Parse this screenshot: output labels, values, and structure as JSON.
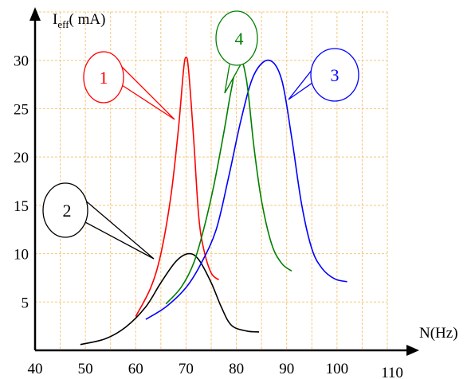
{
  "chart_data": {
    "type": "line",
    "ylabel": {
      "symbol": "I",
      "subscript": "eff",
      "unit": "( mA)"
    },
    "xlabel": "N(Hz)",
    "xlim": [
      40,
      110
    ],
    "ylim": [
      0,
      35
    ],
    "x_ticks": [
      "40",
      "50",
      "60",
      "70",
      "80",
      "90",
      "100",
      "110"
    ],
    "y_ticks": [
      "5",
      "10",
      "15",
      "20",
      "25",
      "30"
    ],
    "grid": true,
    "series": [
      {
        "name": "1",
        "color": "#ff0000",
        "points": [
          [
            60,
            3.5
          ],
          [
            63,
            6.5
          ],
          [
            65,
            10
          ],
          [
            67,
            16
          ],
          [
            68.5,
            23
          ],
          [
            69.5,
            29
          ],
          [
            70,
            30.3
          ],
          [
            70.5,
            29
          ],
          [
            71.5,
            22
          ],
          [
            72.5,
            14
          ],
          [
            73.5,
            10.5
          ],
          [
            75,
            8
          ],
          [
            76.5,
            7.3
          ]
        ]
      },
      {
        "name": "2",
        "color": "#000000",
        "points": [
          [
            49,
            0.6
          ],
          [
            54,
            1.2
          ],
          [
            58,
            2.4
          ],
          [
            62,
            4.5
          ],
          [
            65,
            7
          ],
          [
            68,
            9.2
          ],
          [
            70.5,
            10
          ],
          [
            72.5,
            9.4
          ],
          [
            75,
            7
          ],
          [
            77,
            4.5
          ],
          [
            79,
            2.6
          ],
          [
            82,
            2
          ],
          [
            84.5,
            1.9
          ]
        ]
      },
      {
        "name": "3",
        "color": "#0000ff",
        "points": [
          [
            62,
            3.2
          ],
          [
            66,
            4.5
          ],
          [
            70,
            6.5
          ],
          [
            73,
            9
          ],
          [
            76,
            12.5
          ],
          [
            78.5,
            18
          ],
          [
            81,
            24
          ],
          [
            83.5,
            28.5
          ],
          [
            86.5,
            30
          ],
          [
            89,
            28
          ],
          [
            91,
            22
          ],
          [
            93,
            15
          ],
          [
            95,
            10.5
          ],
          [
            97,
            8.5
          ],
          [
            99.5,
            7.4
          ],
          [
            102,
            7.1
          ]
        ]
      },
      {
        "name": "4",
        "color": "#008000",
        "points": [
          [
            66,
            4.8
          ],
          [
            69,
            6.5
          ],
          [
            71.5,
            9
          ],
          [
            73.5,
            12.5
          ],
          [
            75.5,
            17
          ],
          [
            77.5,
            22.5
          ],
          [
            79,
            27
          ],
          [
            80.5,
            30.3
          ],
          [
            82,
            28
          ],
          [
            83.5,
            21
          ],
          [
            85,
            15.5
          ],
          [
            87,
            11
          ],
          [
            89,
            9
          ],
          [
            91,
            8.2
          ]
        ]
      }
    ],
    "annotations": [
      {
        "text": "1",
        "color": "#ff0000",
        "series": "1"
      },
      {
        "text": "2",
        "color": "#000000",
        "series": "2"
      },
      {
        "text": "3",
        "color": "#0000ff",
        "series": "3"
      },
      {
        "text": "4",
        "color": "#008000",
        "series": "4"
      }
    ]
  }
}
